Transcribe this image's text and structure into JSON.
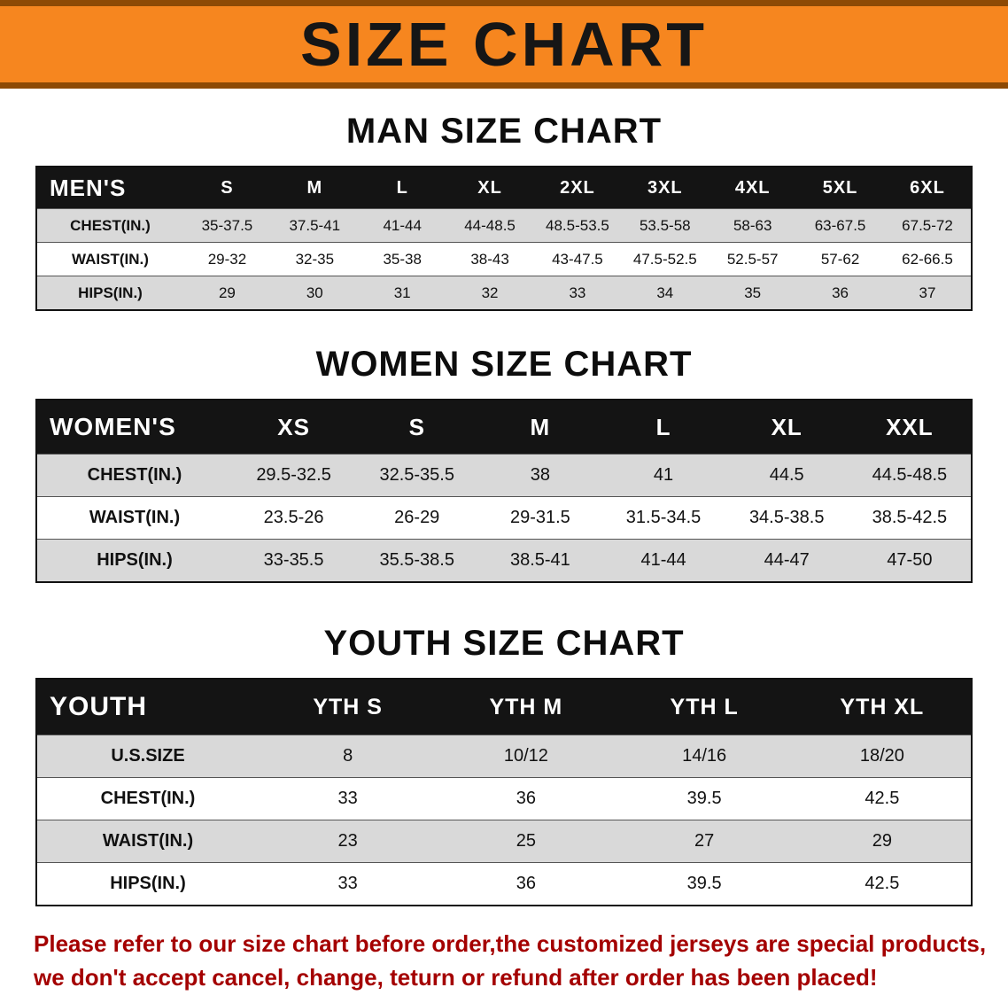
{
  "banner": {
    "title": "SIZE CHART",
    "background_color": "#f6861f",
    "border_color": "#8d4a05"
  },
  "colors": {
    "header_black": "#141414",
    "row_gray": "#d9d9d9",
    "footer_red": "#a40000"
  },
  "sections": [
    {
      "heading": "MAN SIZE CHART",
      "table": {
        "corner": "MEN'S",
        "columns": [
          "S",
          "M",
          "L",
          "XL",
          "2XL",
          "3XL",
          "4XL",
          "5XL",
          "6XL"
        ],
        "rows": [
          {
            "label": "CHEST(IN.)",
            "values": [
              "35-37.5",
              "37.5-41",
              "41-44",
              "44-48.5",
              "48.5-53.5",
              "53.5-58",
              "58-63",
              "63-67.5",
              "67.5-72"
            ]
          },
          {
            "label": "WAIST(IN.)",
            "values": [
              "29-32",
              "32-35",
              "35-38",
              "38-43",
              "43-47.5",
              "47.5-52.5",
              "52.5-57",
              "57-62",
              "62-66.5"
            ]
          },
          {
            "label": "HIPS(IN.)",
            "values": [
              "29",
              "30",
              "31",
              "32",
              "33",
              "34",
              "35",
              "36",
              "37"
            ]
          }
        ]
      }
    },
    {
      "heading": "WOMEN SIZE CHART",
      "table": {
        "corner": "WOMEN'S",
        "columns": [
          "XS",
          "S",
          "M",
          "L",
          "XL",
          "XXL"
        ],
        "rows": [
          {
            "label": "CHEST(IN.)",
            "values": [
              "29.5-32.5",
              "32.5-35.5",
              "38",
              "41",
              "44.5",
              "44.5-48.5"
            ]
          },
          {
            "label": "WAIST(IN.)",
            "values": [
              "23.5-26",
              "26-29",
              "29-31.5",
              "31.5-34.5",
              "34.5-38.5",
              "38.5-42.5"
            ]
          },
          {
            "label": "HIPS(IN.)",
            "values": [
              "33-35.5",
              "35.5-38.5",
              "38.5-41",
              "41-44",
              "44-47",
              "47-50"
            ]
          }
        ]
      }
    },
    {
      "heading": "YOUTH SIZE CHART",
      "table": {
        "corner": "YOUTH",
        "columns": [
          "YTH S",
          "YTH M",
          "YTH L",
          "YTH XL"
        ],
        "rows": [
          {
            "label": "U.S.SIZE",
            "values": [
              "8",
              "10/12",
              "14/16",
              "18/20"
            ]
          },
          {
            "label": "CHEST(IN.)",
            "values": [
              "33",
              "36",
              "39.5",
              "42.5"
            ]
          },
          {
            "label": "WAIST(IN.)",
            "values": [
              "23",
              "25",
              "27",
              "29"
            ]
          },
          {
            "label": "HIPS(IN.)",
            "values": [
              "33",
              "36",
              "39.5",
              "42.5"
            ]
          }
        ]
      }
    }
  ],
  "footer": {
    "line1": "Please refer to our size chart before order,the customized jerseys are special products,",
    "line2": "we don't accept cancel, change, teturn or refund after order has been placed!"
  }
}
